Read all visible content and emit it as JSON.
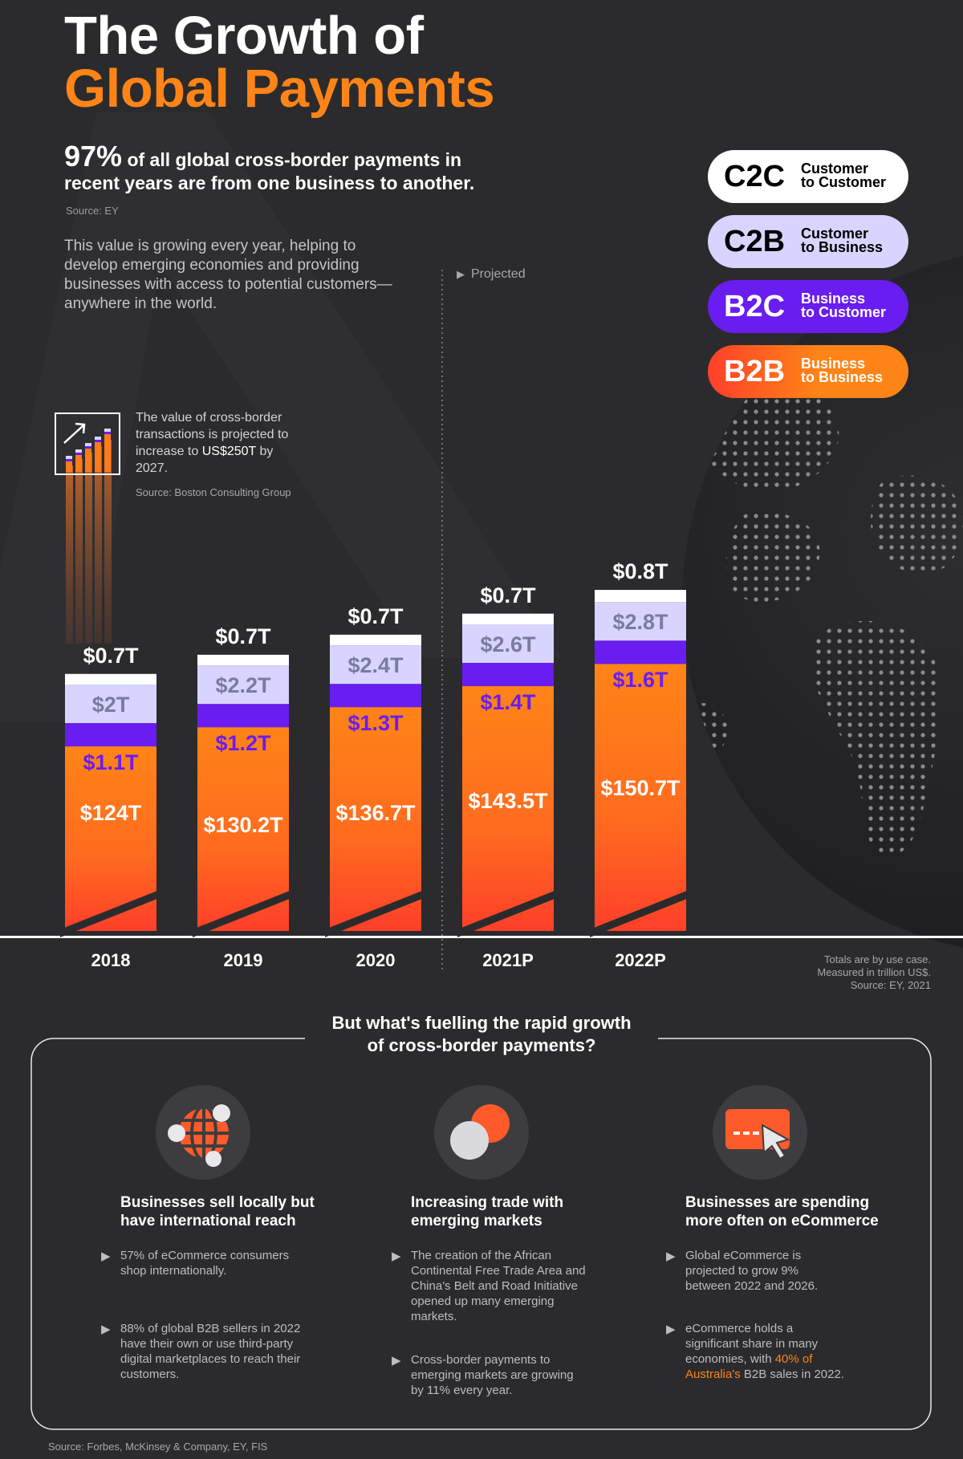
{
  "title": {
    "line1": "The Growth of",
    "line2": "Global Payments"
  },
  "intro": {
    "stat_value": "97%",
    "stat_text": "of all global cross-border payments in recent years are from one business to another.",
    "stat_source": "Source: EY",
    "description": "This value is growing every year, helping to develop emerging economies and providing businesses with access to potential customers—anywhere in the world."
  },
  "projection": {
    "text_before": "The value of cross-border transactions is projected to increase to ",
    "highlight": "US$250T",
    "text_after": " by 2027.",
    "source": "Source: Boston Consulting Group"
  },
  "projected_label": "Projected",
  "legend": [
    {
      "code": "C2C",
      "desc_line1": "Customer",
      "desc_line2": "to Customer",
      "color": "#ffffff",
      "text_color": "#000000"
    },
    {
      "code": "C2B",
      "desc_line1": "Customer",
      "desc_line2": "to Business",
      "color": "#d7d4ff",
      "text_color": "#000000"
    },
    {
      "code": "B2C",
      "desc_line1": "Business",
      "desc_line2": "to Customer",
      "color": "#6a1df0",
      "text_color": "#ffffff"
    },
    {
      "code": "B2B",
      "desc_line1": "Business",
      "desc_line2": "to Business",
      "color": "#ff8417",
      "text_color": "#ffffff"
    }
  ],
  "colors": {
    "c2c": "#ffffff",
    "c2b": "#d7d4ff",
    "b2c": "#6a1df0",
    "b2b_top": "#ff8417",
    "b2b_bottom": "#ff3f2a",
    "background": "#2b2b2d"
  },
  "chart_data": {
    "type": "bar",
    "stacked": true,
    "categories": [
      "2018",
      "2019",
      "2020",
      "2021P",
      "2022P"
    ],
    "series": [
      {
        "name": "B2B",
        "values": [
          124,
          130.2,
          136.7,
          143.5,
          150.7
        ],
        "labels": [
          "$124T",
          "$130.2T",
          "$136.7T",
          "$143.5T",
          "$150.7T"
        ]
      },
      {
        "name": "B2C",
        "values": [
          1.1,
          1.2,
          1.3,
          1.4,
          1.6
        ],
        "labels": [
          "$1.1T",
          "$1.2T",
          "$1.3T",
          "$1.4T",
          "$1.6T"
        ]
      },
      {
        "name": "C2B",
        "values": [
          2,
          2.2,
          2.4,
          2.6,
          2.8
        ],
        "labels": [
          "$2T",
          "$2.2T",
          "$2.4T",
          "$2.6T",
          "$2.8T"
        ]
      },
      {
        "name": "C2C",
        "values": [
          0.7,
          0.7,
          0.7,
          0.7,
          0.8
        ],
        "labels": [
          "$0.7T",
          "$0.7T",
          "$0.7T",
          "$0.7T",
          "$0.8T"
        ]
      }
    ],
    "projected_categories": [
      "2021P",
      "2022P"
    ],
    "notes": [
      "Totals are by use case.",
      "Measured in trillion US$.",
      "Source: EY, 2021"
    ]
  },
  "drivers": {
    "heading_line1": "But what's fuelling the rapid growth",
    "heading_line2": "of cross-border payments?",
    "columns": [
      {
        "icon": "globe-icon",
        "title_line1": "Businesses sell locally but",
        "title_line2": "have international reach",
        "bullets": [
          "57% of eCommerce consumers shop internationally.",
          "88% of global B2B sellers in 2022 have their own or use third-party digital marketplaces to reach their customers."
        ]
      },
      {
        "icon": "overlapping-circles-icon",
        "title_line1": "Increasing trade with",
        "title_line2": "emerging markets",
        "bullets": [
          "The creation of the African Continental Free Trade Area and China's Belt and Road Initiative opened up many emerging markets.",
          "Cross-border payments to emerging markets are growing by 11% every year."
        ]
      },
      {
        "icon": "card-cursor-icon",
        "title_line1": "Businesses are spending",
        "title_line2": "more often on eCommerce",
        "bullets": [
          "Global eCommerce is projected to grow 9% between 2022 and 2026."
        ],
        "last_bullet": {
          "before": "eCommerce holds a significant share in many economies, with ",
          "highlight": "40% of Australia's",
          "after": " B2B sales in 2022."
        }
      }
    ]
  },
  "footer_source": "Source: Forbes, McKinsey & Company, EY, FIS"
}
